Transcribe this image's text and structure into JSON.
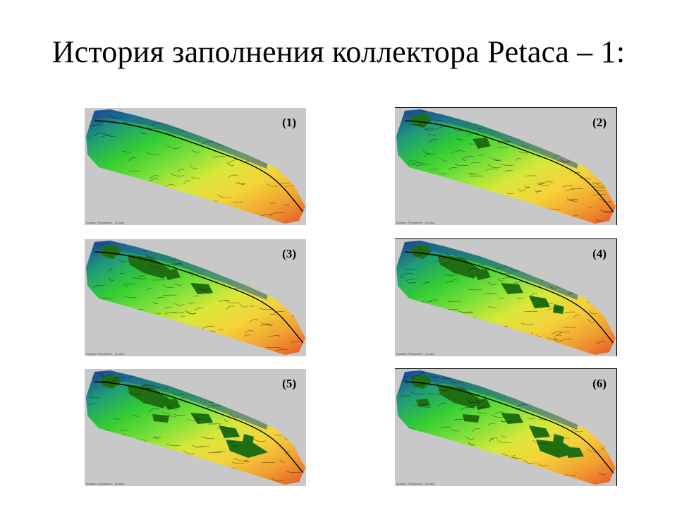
{
  "title": "История заполнения коллектора Petaca – 1:",
  "panels": [
    {
      "label": "(1)",
      "fill_stage": 0,
      "caption": "Solution: Fill patterns - (1) step"
    },
    {
      "label": "(2)",
      "fill_stage": 1,
      "caption": "Solution: Fill patterns - (2) step"
    },
    {
      "label": "(3)",
      "fill_stage": 2,
      "caption": "Solution: Fill patterns - (3) step"
    },
    {
      "label": "(4)",
      "fill_stage": 3,
      "caption": "Solution: Fill patterns - (4) step"
    },
    {
      "label": "(5)",
      "fill_stage": 4,
      "caption": "Solution: Fill patterns - (5) step"
    },
    {
      "label": "(6)",
      "fill_stage": 5,
      "caption": "Solution: Fill patterns - (6) step"
    }
  ],
  "colors": {
    "background": "#ffffff",
    "panel_background": "#c8c8c8",
    "map_gradient": [
      "#1a3d8f",
      "#1f9a7a",
      "#33cc33",
      "#7be03a",
      "#d8e83a",
      "#f5d23a",
      "#f0a030",
      "#e8552a"
    ],
    "filled_region": "#1f6e12",
    "contour_lines": "#000000"
  }
}
